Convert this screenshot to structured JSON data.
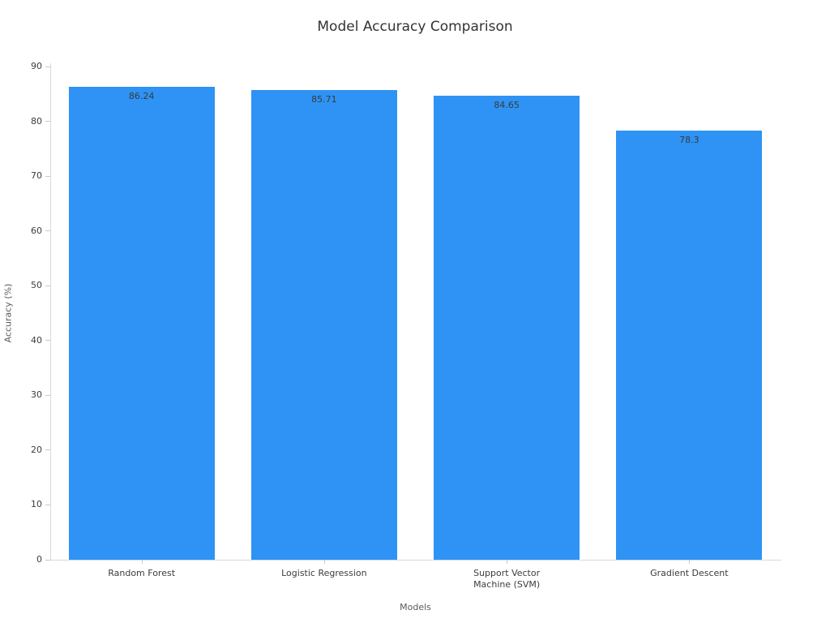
{
  "chart_data": {
    "type": "bar",
    "title": "Model Accuracy Comparison",
    "categories": [
      "Random Forest",
      "Logistic Regression",
      "Support Vector\nMachine (SVM)",
      "Gradient Descent"
    ],
    "values": [
      86.24,
      85.71,
      84.65,
      78.3
    ],
    "value_labels": [
      "86.24",
      "85.71",
      "84.65",
      "78.3"
    ],
    "xlabel": "Models",
    "ylabel": "Accuracy (%)",
    "ylim": [
      0,
      90
    ],
    "yticks": [
      0,
      10,
      20,
      30,
      40,
      50,
      60,
      70,
      80,
      90
    ],
    "grid": false,
    "legend": "none",
    "bar_color": "#2e93f5",
    "value_label_color": "#3a3a3a",
    "tick_label_color": "#3c3c3c",
    "axis_label_color": "#595959",
    "title_color": "#333333",
    "spine_color": "#d9d9d9",
    "background": "#ffffff"
  }
}
